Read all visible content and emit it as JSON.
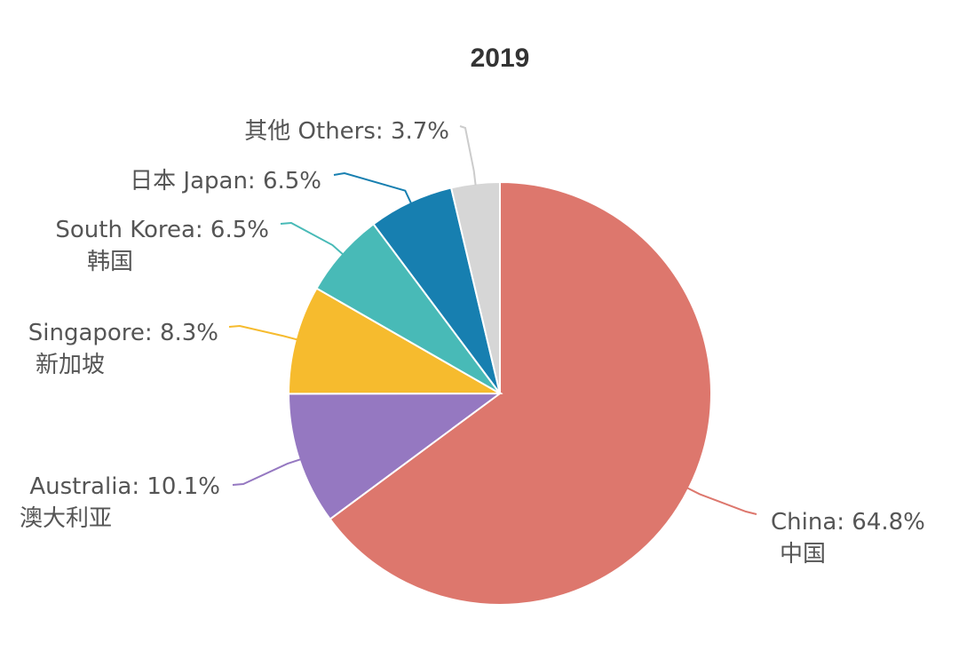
{
  "chart_data": {
    "type": "pie",
    "title": "2019",
    "start_angle_deg": 0,
    "direction": "clockwise",
    "slices": [
      {
        "name": "China",
        "name_local": "中国",
        "value": 64.8,
        "label": "China: 64.8%",
        "sublabel": "中国",
        "color": "#dd776d"
      },
      {
        "name": "Australia",
        "name_local": "澳大利亚",
        "value": 10.1,
        "label": "Australia: 10.1%",
        "sublabel": "澳大利亚",
        "color": "#9578c1"
      },
      {
        "name": "Singapore",
        "name_local": "新加坡",
        "value": 8.3,
        "label": "Singapore: 8.3%",
        "sublabel": "新加坡",
        "color": "#f6bb2e"
      },
      {
        "name": "South Korea",
        "name_local": "韩国",
        "value": 6.5,
        "label": "South Korea: 6.5%",
        "sublabel": "韩国",
        "color": "#48bab7"
      },
      {
        "name": "Japan",
        "name_local": "日本",
        "value": 6.5,
        "label": "日本 Japan: 6.5%",
        "sublabel": "",
        "color": "#177fb0"
      },
      {
        "name": "Others",
        "name_local": "其他",
        "value": 3.7,
        "label": "其他  Others: 3.7%",
        "sublabel": "",
        "color": "#d6d6d6"
      }
    ]
  }
}
